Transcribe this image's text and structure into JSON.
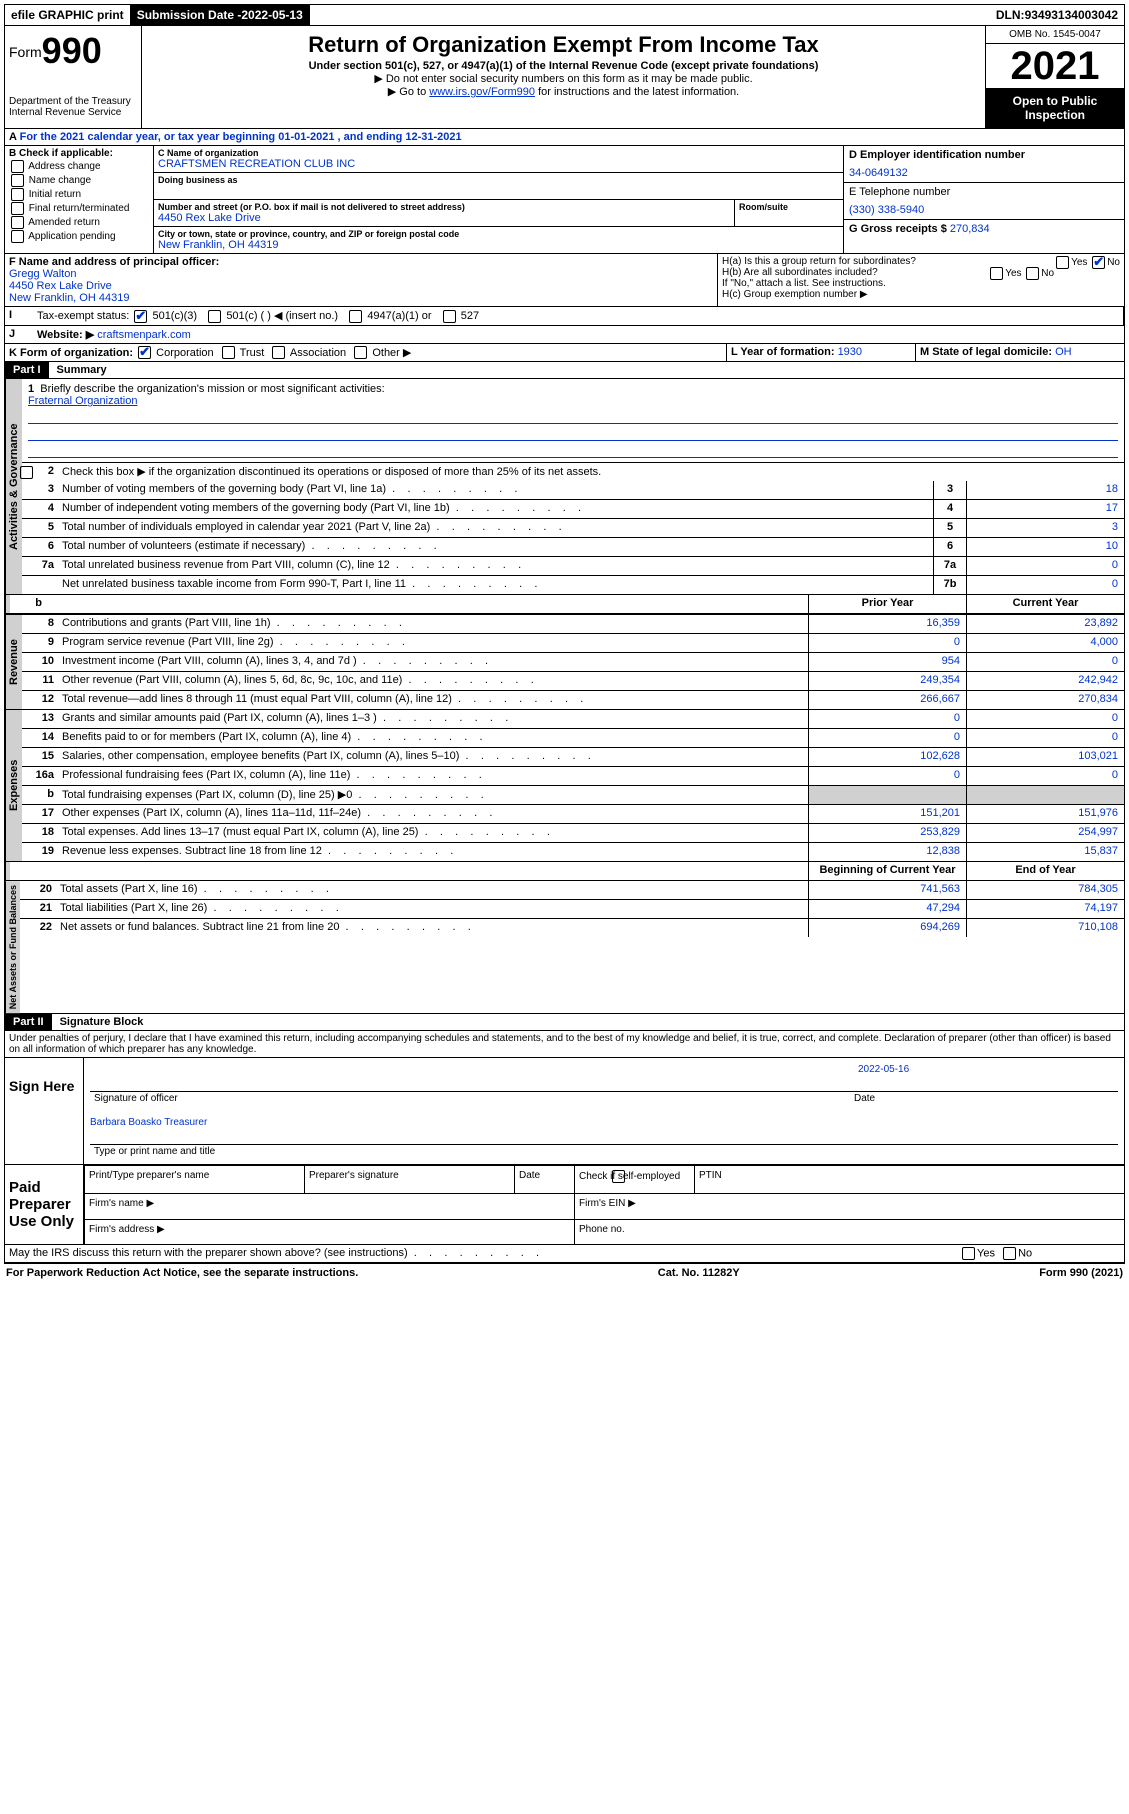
{
  "topbar": {
    "efile": "efile GRAPHIC print",
    "submission_label": "Submission Date - ",
    "submission_date": "2022-05-13",
    "dln_label": "DLN: ",
    "dln": "93493134003042"
  },
  "header": {
    "form_prefix": "Form",
    "form_number": "990",
    "dept": "Department of the Treasury",
    "irs": "Internal Revenue Service",
    "title": "Return of Organization Exempt From Income Tax",
    "subtitle": "Under section 501(c), 527, or 4947(a)(1) of the Internal Revenue Code (except private foundations)",
    "instr1": "▶ Do not enter social security numbers on this form as it may be made public.",
    "instr2_pre": "▶ Go to ",
    "instr2_link": "www.irs.gov/Form990",
    "instr2_post": " for instructions and the latest information.",
    "omb": "OMB No. 1545-0047",
    "year": "2021",
    "open": "Open to Public Inspection"
  },
  "taxyear": "For the 2021 calendar year, or tax year beginning 01-01-2021  , and ending 12-31-2021",
  "blockB": {
    "label": "B Check if applicable:",
    "items": [
      "Address change",
      "Name change",
      "Initial return",
      "Final return/terminated",
      "Amended return",
      "Application pending"
    ]
  },
  "blockC": {
    "name_label": "C Name of organization",
    "name": "CRAFTSMEN RECREATION CLUB INC",
    "dba_label": "Doing business as",
    "addr_label": "Number and street (or P.O. box if mail is not delivered to street address)",
    "room_label": "Room/suite",
    "addr": "4450 Rex Lake Drive",
    "city_label": "City or town, state or province, country, and ZIP or foreign postal code",
    "city": "New Franklin, OH  44319"
  },
  "blockD": {
    "label": "D Employer identification number",
    "value": "34-0649132"
  },
  "blockE": {
    "label": "E Telephone number",
    "value": "(330) 338-5940"
  },
  "blockG": {
    "label": "G Gross receipts $ ",
    "value": "270,834"
  },
  "blockF": {
    "label": "F  Name and address of principal officer:",
    "name": "Gregg Walton",
    "addr1": "4450 Rex Lake Drive",
    "addr2": "New Franklin, OH  44319"
  },
  "blockH": {
    "a": "H(a)  Is this a group return for subordinates?",
    "yes": "Yes",
    "no": "No",
    "b": "H(b)  Are all subordinates included?",
    "b_note": "If \"No,\" attach a list. See instructions.",
    "c": "H(c)  Group exemption number ▶"
  },
  "rowI": {
    "label": "I",
    "text": "Tax-exempt status:",
    "opts": [
      "501(c)(3)",
      "501(c) (  ) ◀ (insert no.)",
      "4947(a)(1) or",
      "527"
    ]
  },
  "rowJ": {
    "label": "J",
    "text": "Website: ▶",
    "value": "craftsmenpark.com"
  },
  "rowK": {
    "label": "K Form of organization:",
    "opts": [
      "Corporation",
      "Trust",
      "Association",
      "Other ▶"
    ]
  },
  "rowL": {
    "label": "L Year of formation: ",
    "value": "1930"
  },
  "rowM": {
    "label": "M State of legal domicile: ",
    "value": "OH"
  },
  "partI": {
    "label": "Part I",
    "title": "Summary"
  },
  "summary": {
    "q1": "Briefly describe the organization's mission or most significant activities:",
    "mission": "Fraternal Organization",
    "q2": "Check this box ▶         if the organization discontinued its operations or disposed of more than 25% of its net assets.",
    "lines": [
      {
        "n": "3",
        "t": "Number of voting members of the governing body (Part VI, line 1a)",
        "lbl": "3",
        "v": "18"
      },
      {
        "n": "4",
        "t": "Number of independent voting members of the governing body (Part VI, line 1b)",
        "lbl": "4",
        "v": "17"
      },
      {
        "n": "5",
        "t": "Total number of individuals employed in calendar year 2021 (Part V, line 2a)",
        "lbl": "5",
        "v": "3"
      },
      {
        "n": "6",
        "t": "Total number of volunteers (estimate if necessary)",
        "lbl": "6",
        "v": "10"
      },
      {
        "n": "7a",
        "t": "Total unrelated business revenue from Part VIII, column (C), line 12",
        "lbl": "7a",
        "v": "0"
      },
      {
        "n": "",
        "t": "Net unrelated business taxable income from Form 990-T, Part I, line 11",
        "lbl": "7b",
        "v": "0"
      }
    ],
    "colheaders": {
      "prior": "Prior Year",
      "current": "Current Year"
    },
    "revenue": [
      {
        "n": "8",
        "t": "Contributions and grants (Part VIII, line 1h)",
        "p": "16,359",
        "c": "23,892"
      },
      {
        "n": "9",
        "t": "Program service revenue (Part VIII, line 2g)",
        "p": "0",
        "c": "4,000"
      },
      {
        "n": "10",
        "t": "Investment income (Part VIII, column (A), lines 3, 4, and 7d )",
        "p": "954",
        "c": "0"
      },
      {
        "n": "11",
        "t": "Other revenue (Part VIII, column (A), lines 5, 6d, 8c, 9c, 10c, and 11e)",
        "p": "249,354",
        "c": "242,942"
      },
      {
        "n": "12",
        "t": "Total revenue—add lines 8 through 11 (must equal Part VIII, column (A), line 12)",
        "p": "266,667",
        "c": "270,834"
      }
    ],
    "expenses": [
      {
        "n": "13",
        "t": "Grants and similar amounts paid (Part IX, column (A), lines 1–3 )",
        "p": "0",
        "c": "0"
      },
      {
        "n": "14",
        "t": "Benefits paid to or for members (Part IX, column (A), line 4)",
        "p": "0",
        "c": "0"
      },
      {
        "n": "15",
        "t": "Salaries, other compensation, employee benefits (Part IX, column (A), lines 5–10)",
        "p": "102,628",
        "c": "103,021"
      },
      {
        "n": "16a",
        "t": "Professional fundraising fees (Part IX, column (A), line 11e)",
        "p": "0",
        "c": "0"
      },
      {
        "n": "b",
        "t": "Total fundraising expenses (Part IX, column (D), line 25) ▶0",
        "p": "",
        "c": "",
        "grey": true
      },
      {
        "n": "17",
        "t": "Other expenses (Part IX, column (A), lines 11a–11d, 11f–24e)",
        "p": "151,201",
        "c": "151,976"
      },
      {
        "n": "18",
        "t": "Total expenses. Add lines 13–17 (must equal Part IX, column (A), line 25)",
        "p": "253,829",
        "c": "254,997"
      },
      {
        "n": "19",
        "t": "Revenue less expenses. Subtract line 18 from line 12",
        "p": "12,838",
        "c": "15,837"
      }
    ],
    "balheaders": {
      "begin": "Beginning of Current Year",
      "end": "End of Year"
    },
    "balances": [
      {
        "n": "20",
        "t": "Total assets (Part X, line 16)",
        "p": "741,563",
        "c": "784,305"
      },
      {
        "n": "21",
        "t": "Total liabilities (Part X, line 26)",
        "p": "47,294",
        "c": "74,197"
      },
      {
        "n": "22",
        "t": "Net assets or fund balances. Subtract line 21 from line 20",
        "p": "694,269",
        "c": "710,108"
      }
    ]
  },
  "vlabels": {
    "gov": "Activities & Governance",
    "rev": "Revenue",
    "exp": "Expenses",
    "bal": "Net Assets or Fund Balances"
  },
  "partII": {
    "label": "Part II",
    "title": "Signature Block"
  },
  "sig": {
    "penalties": "Under penalties of perjury, I declare that I have examined this return, including accompanying schedules and statements, and to the best of my knowledge and belief, it is true, correct, and complete. Declaration of preparer (other than officer) is based on all information of which preparer has any knowledge.",
    "sign_here": "Sign Here",
    "officer_sig": "Signature of officer",
    "date_label": "Date",
    "date": "2022-05-16",
    "officer_name": "Barbara Boasko Treasurer",
    "officer_title_label": "Type or print name and title",
    "paid": "Paid Preparer Use Only",
    "prep_name": "Print/Type preparer's name",
    "prep_sig": "Preparer's signature",
    "prep_date": "Date",
    "check_self": "Check        if self-employed",
    "ptin": "PTIN",
    "firm_name": "Firm's name   ▶",
    "firm_ein": "Firm's EIN ▶",
    "firm_addr": "Firm's address ▶",
    "phone": "Phone no."
  },
  "discuss": "May the IRS discuss this return with the preparer shown above? (see instructions)",
  "footer": {
    "left": "For Paperwork Reduction Act Notice, see the separate instructions.",
    "mid": "Cat. No. 11282Y",
    "right": "Form 990 (2021)"
  }
}
